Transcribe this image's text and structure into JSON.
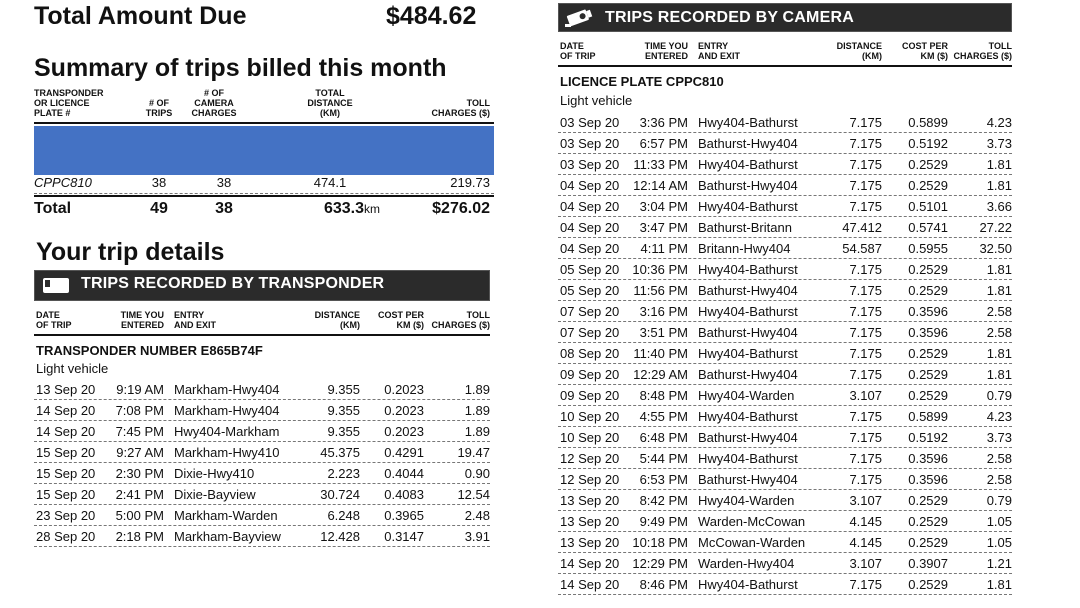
{
  "total": {
    "label": "Total Amount Due",
    "amount": "$484.62"
  },
  "summary": {
    "title": "Summary of trips billed this month",
    "headers": {
      "plate": "TRANSPONDER\nOR LICENCE\nPLATE #",
      "trips": "# OF\nTRIPS",
      "camera": "# OF\nCAMERA\nCHARGES",
      "distance": "TOTAL\nDISTANCE\n(KM)",
      "toll": "TOLL\nCHARGES ($)"
    },
    "rows": [
      {
        "plate": "CPPC810",
        "trips": "38",
        "camera": "38",
        "distance": "474.1",
        "toll": "219.73"
      }
    ],
    "total_row": {
      "label": "Total",
      "trips": "49",
      "camera": "38",
      "distance": "633.3",
      "distance_unit": "km",
      "toll": "$276.02"
    }
  },
  "details_title": "Your trip details",
  "transponder": {
    "banner": "TRIPS RECORDED BY TRANSPONDER",
    "headers": {
      "date": "DATE\nOF TRIP",
      "time": "TIME YOU\nENTERED",
      "entry": "ENTRY\nAND EXIT",
      "distance": "DISTANCE\n(KM)",
      "cost": "COST PER\nKM ($)",
      "toll": "TOLL\nCHARGES ($)"
    },
    "number_label": "TRANSPONDER NUMBER E865B74F",
    "vehicle": "Light vehicle",
    "trips": [
      {
        "date": "13 Sep 20",
        "time": "9:19 AM",
        "route": "Markham-Hwy404",
        "distance": "9.355",
        "cost": "0.2023",
        "toll": "1.89"
      },
      {
        "date": "14 Sep 20",
        "time": "7:08 PM",
        "route": "Markham-Hwy404",
        "distance": "9.355",
        "cost": "0.2023",
        "toll": "1.89"
      },
      {
        "date": "14 Sep 20",
        "time": "7:45 PM",
        "route": "Hwy404-Markham",
        "distance": "9.355",
        "cost": "0.2023",
        "toll": "1.89"
      },
      {
        "date": "15 Sep 20",
        "time": "9:27 AM",
        "route": "Markham-Hwy410",
        "distance": "45.375",
        "cost": "0.4291",
        "toll": "19.47"
      },
      {
        "date": "15 Sep 20",
        "time": "2:30 PM",
        "route": "Dixie-Hwy410",
        "distance": "2.223",
        "cost": "0.4044",
        "toll": "0.90"
      },
      {
        "date": "15 Sep 20",
        "time": "2:41 PM",
        "route": "Dixie-Bayview",
        "distance": "30.724",
        "cost": "0.4083",
        "toll": "12.54"
      },
      {
        "date": "23 Sep 20",
        "time": "5:00 PM",
        "route": "Markham-Warden",
        "distance": "6.248",
        "cost": "0.3965",
        "toll": "2.48"
      },
      {
        "date": "28 Sep 20",
        "time": "2:18 PM",
        "route": "Markham-Bayview",
        "distance": "12.428",
        "cost": "0.3147",
        "toll": "3.91"
      }
    ]
  },
  "camera": {
    "banner": "TRIPS RECORDED BY CAMERA",
    "headers": {
      "date": "DATE\nOF TRIP",
      "time": "TIME YOU\nENTERED",
      "entry": "ENTRY\nAND EXIT",
      "distance": "DISTANCE\n(KM)",
      "cost": "COST PER\nKM ($)",
      "toll": "TOLL\nCHARGES ($)"
    },
    "plate_label": "LICENCE PLATE CPPC810",
    "vehicle": "Light vehicle",
    "trips": [
      {
        "date": "03 Sep 20",
        "time": "3:36 PM",
        "route": "Hwy404-Bathurst",
        "distance": "7.175",
        "cost": "0.5899",
        "toll": "4.23"
      },
      {
        "date": "03 Sep 20",
        "time": "6:57 PM",
        "route": "Bathurst-Hwy404",
        "distance": "7.175",
        "cost": "0.5192",
        "toll": "3.73"
      },
      {
        "date": "03 Sep 20",
        "time": "11:33 PM",
        "route": "Hwy404-Bathurst",
        "distance": "7.175",
        "cost": "0.2529",
        "toll": "1.81"
      },
      {
        "date": "04 Sep 20",
        "time": "12:14 AM",
        "route": "Bathurst-Hwy404",
        "distance": "7.175",
        "cost": "0.2529",
        "toll": "1.81"
      },
      {
        "date": "04 Sep 20",
        "time": "3:04 PM",
        "route": "Hwy404-Bathurst",
        "distance": "7.175",
        "cost": "0.5101",
        "toll": "3.66"
      },
      {
        "date": "04 Sep 20",
        "time": "3:47 PM",
        "route": "Bathurst-Britann",
        "distance": "47.412",
        "cost": "0.5741",
        "toll": "27.22"
      },
      {
        "date": "04 Sep 20",
        "time": "4:11 PM",
        "route": "Britann-Hwy404",
        "distance": "54.587",
        "cost": "0.5955",
        "toll": "32.50"
      },
      {
        "date": "05 Sep 20",
        "time": "10:36 PM",
        "route": "Hwy404-Bathurst",
        "distance": "7.175",
        "cost": "0.2529",
        "toll": "1.81"
      },
      {
        "date": "05 Sep 20",
        "time": "11:56 PM",
        "route": "Bathurst-Hwy404",
        "distance": "7.175",
        "cost": "0.2529",
        "toll": "1.81"
      },
      {
        "date": "07 Sep 20",
        "time": "3:16 PM",
        "route": "Hwy404-Bathurst",
        "distance": "7.175",
        "cost": "0.3596",
        "toll": "2.58"
      },
      {
        "date": "07 Sep 20",
        "time": "3:51 PM",
        "route": "Bathurst-Hwy404",
        "distance": "7.175",
        "cost": "0.3596",
        "toll": "2.58"
      },
      {
        "date": "08 Sep 20",
        "time": "11:40 PM",
        "route": "Hwy404-Bathurst",
        "distance": "7.175",
        "cost": "0.2529",
        "toll": "1.81"
      },
      {
        "date": "09 Sep 20",
        "time": "12:29 AM",
        "route": "Bathurst-Hwy404",
        "distance": "7.175",
        "cost": "0.2529",
        "toll": "1.81"
      },
      {
        "date": "09 Sep 20",
        "time": "8:48 PM",
        "route": "Hwy404-Warden",
        "distance": "3.107",
        "cost": "0.2529",
        "toll": "0.79"
      },
      {
        "date": "10 Sep 20",
        "time": "4:55 PM",
        "route": "Hwy404-Bathurst",
        "distance": "7.175",
        "cost": "0.5899",
        "toll": "4.23"
      },
      {
        "date": "10 Sep 20",
        "time": "6:48 PM",
        "route": "Bathurst-Hwy404",
        "distance": "7.175",
        "cost": "0.5192",
        "toll": "3.73"
      },
      {
        "date": "12 Sep 20",
        "time": "5:44 PM",
        "route": "Hwy404-Bathurst",
        "distance": "7.175",
        "cost": "0.3596",
        "toll": "2.58"
      },
      {
        "date": "12 Sep 20",
        "time": "6:53 PM",
        "route": "Bathurst-Hwy404",
        "distance": "7.175",
        "cost": "0.3596",
        "toll": "2.58"
      },
      {
        "date": "13 Sep 20",
        "time": "8:42 PM",
        "route": "Hwy404-Warden",
        "distance": "3.107",
        "cost": "0.2529",
        "toll": "0.79"
      },
      {
        "date": "13 Sep 20",
        "time": "9:49 PM",
        "route": "Warden-McCowan",
        "distance": "4.145",
        "cost": "0.2529",
        "toll": "1.05"
      },
      {
        "date": "13 Sep 20",
        "time": "10:18 PM",
        "route": "McCowan-Warden",
        "distance": "4.145",
        "cost": "0.2529",
        "toll": "1.05"
      },
      {
        "date": "14 Sep 20",
        "time": "12:29 PM",
        "route": "Warden-Hwy404",
        "distance": "3.107",
        "cost": "0.3907",
        "toll": "1.21"
      },
      {
        "date": "14 Sep 20",
        "time": "8:46 PM",
        "route": "Hwy404-Bathurst",
        "distance": "7.175",
        "cost": "0.2529",
        "toll": "1.81"
      }
    ]
  },
  "icons": {
    "transponder": "transponder-icon",
    "camera": "camera-icon"
  },
  "colors": {
    "redaction": "#4472c4",
    "banner": "#2b2b2b"
  }
}
